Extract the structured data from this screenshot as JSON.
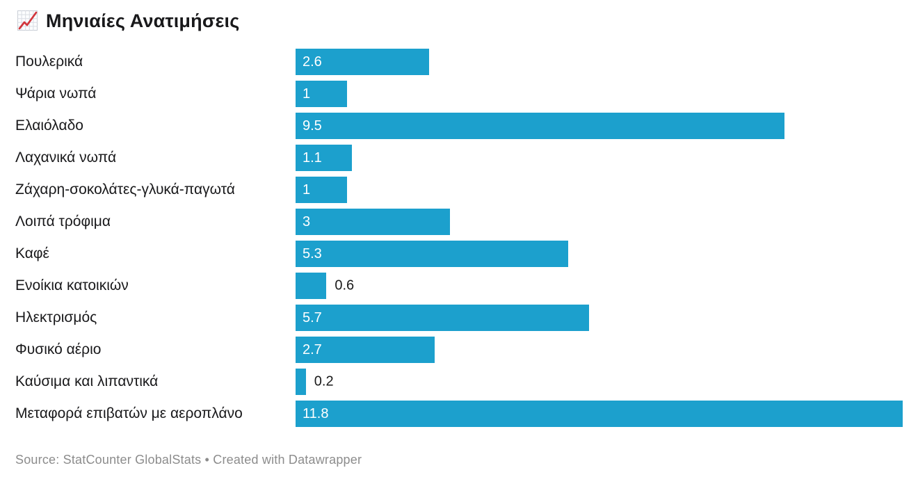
{
  "header": {
    "icon": "chart-increasing",
    "title": "Μηνιαίες Ανατιμήσεις"
  },
  "chart_data": {
    "type": "bar",
    "orientation": "horizontal",
    "title": "Μηνιαίες Ανατιμήσεις",
    "categories": [
      "Πουλερικά",
      "Ψάρια νωπά",
      "Ελαιόλαδο",
      "Λαχανικά νωπά",
      "Ζάχαρη-σοκολάτες-γλυκά-παγωτά",
      "Λοιπά τρόφιμα",
      "Καφέ",
      "Ενοίκια κατοικιών",
      "Ηλεκτρισμός",
      "Φυσικό αέριο",
      "Καύσιμα και λιπαντικά",
      "Μεταφορά επιβατών με αεροπλάνο"
    ],
    "values": [
      2.6,
      1,
      9.5,
      1.1,
      1,
      3,
      5.3,
      0.6,
      5.7,
      2.7,
      0.2,
      11.8
    ],
    "value_labels": [
      "2.6",
      "1",
      "9.5",
      "1.1",
      "1",
      "3",
      "5.3",
      "0.6",
      "5.7",
      "2.7",
      "0.2",
      "11.8"
    ],
    "xlabel": "",
    "ylabel": "",
    "xlim": [
      0,
      11.8
    ],
    "grid": false,
    "legend": "none",
    "bar_color": "#1CA0CD",
    "value_label_inside_color": "#ffffff",
    "value_label_outside_color": "#1a1a1a"
  },
  "footer": {
    "source_text": "Source: StatCounter GlobalStats • Created with Datawrapper"
  }
}
